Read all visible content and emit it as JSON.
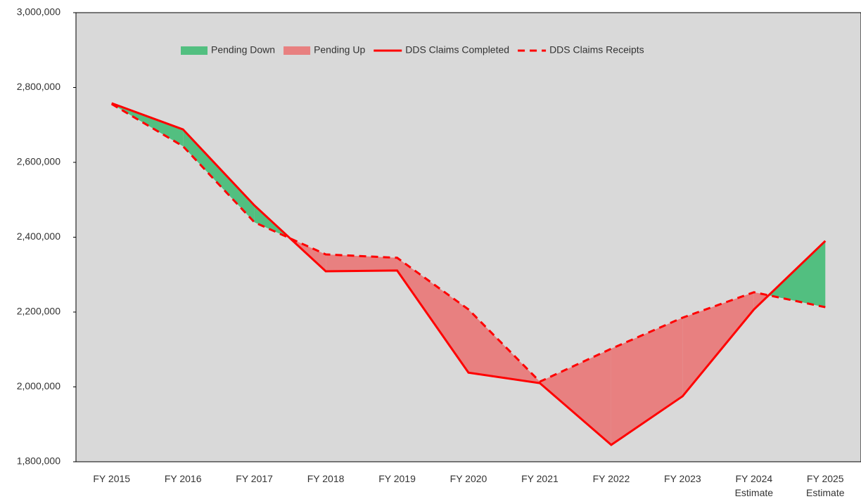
{
  "chart_data": {
    "type": "line",
    "categories": [
      "FY 2015",
      "FY 2016",
      "FY 2017",
      "FY 2018",
      "FY 2019",
      "FY 2020",
      "FY 2021",
      "FY 2022",
      "FY 2023",
      "FY 2024\nEstimate",
      "FY 2025\nEstimate"
    ],
    "series": [
      {
        "name": "DDS Claims Completed",
        "color": "#ff0000",
        "dash": false,
        "values": [
          2758000,
          2688000,
          2485000,
          2309000,
          2311000,
          2038000,
          2010000,
          1845000,
          1975000,
          2207000,
          2390000
        ]
      },
      {
        "name": "DDS Claims Receipts",
        "color": "#ff0000",
        "dash": true,
        "values": [
          2756000,
          2643000,
          2440000,
          2354000,
          2345000,
          2207000,
          2014000,
          2102000,
          2185000,
          2253000,
          2213000
        ]
      }
    ],
    "fills": [
      {
        "name": "Pending Down",
        "color": "#52bf80"
      },
      {
        "name": "Pending Up",
        "color": "#e88080"
      }
    ],
    "ylim": [
      1800000,
      3000000
    ],
    "yticks": [
      {
        "value": 1800000,
        "label": "1,800,000"
      },
      {
        "value": 2000000,
        "label": "2,000,000"
      },
      {
        "value": 2200000,
        "label": "2,200,000"
      },
      {
        "value": 2400000,
        "label": "2,400,000"
      },
      {
        "value": 2600000,
        "label": "2,600,000"
      },
      {
        "value": 2800000,
        "label": "2,800,000"
      },
      {
        "value": 3000000,
        "label": "3,000,000"
      }
    ],
    "legend": "top"
  }
}
